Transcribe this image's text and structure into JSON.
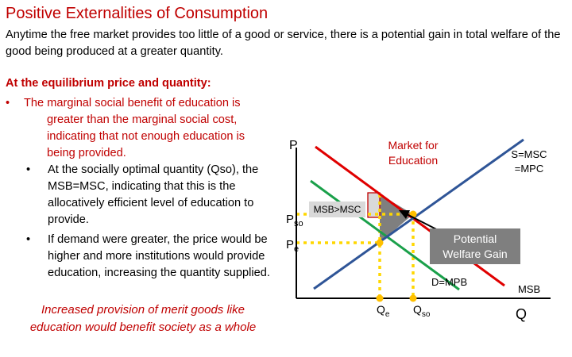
{
  "title": "Positive Externalities of Consumption",
  "intro": "Anytime the free market provides too little of a good or service, there is a potential gain in total welfare of the good being produced at a greater quantity.",
  "equilibrium_heading": "At the equilibrium price and quantity:",
  "bullets": [
    {
      "lines": [
        "The marginal social benefit of education is",
        "greater than the marginal social cost,",
        "indicating that not enough education is",
        "being provided."
      ]
    },
    {
      "lines": [
        "At the socially optimal quantity (Qso), the",
        "MSB=MSC, indicating that this is the",
        "allocatively efficient level of education to",
        "provide."
      ]
    },
    {
      "lines": [
        "If demand were greater, the price would be",
        "higher and more institutions would provide",
        "education, increasing the quantity supplied."
      ]
    }
  ],
  "footer": [
    "Increased provision of merit goods like",
    "education would benefit society as a whole"
  ],
  "diagram": {
    "axis_y_label": "P",
    "axis_x_label": "Q",
    "market_label": [
      "Market for",
      "Education"
    ],
    "supply_label": [
      "S=MSC",
      "=MPC"
    ],
    "msb_gt_msc_label": "MSB>MSC",
    "price_so_label": {
      "main": "P",
      "sub": "so"
    },
    "price_e_label": {
      "main": "P",
      "sub": "e"
    },
    "qty_e_label": {
      "main": "Q",
      "sub": "e"
    },
    "qty_so_label": {
      "main": "Q",
      "sub": "so"
    },
    "welfare_gain_label": [
      "Potential",
      "Welfare Gain"
    ],
    "demand_label": "D=MPB",
    "msb_label": "MSB",
    "colors": {
      "supply": "#2f5597",
      "msb": "#e00000",
      "demand": "#1aa04a",
      "dotted": "#ffd700",
      "point": "#ffc000",
      "gain_fill": "#7f7f7f",
      "label_red": "#c00000"
    }
  }
}
